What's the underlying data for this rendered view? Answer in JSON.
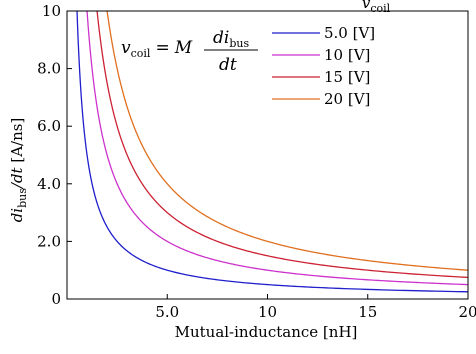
{
  "chart_data": {
    "type": "line",
    "xlabel": "Mutual-inductance [nH]",
    "ylabel": "di_bus/dt [A/ns]",
    "xlim": [
      0,
      20
    ],
    "ylim": [
      0,
      10
    ],
    "x_ticks": [
      {
        "value": 5,
        "label": "5.0"
      },
      {
        "value": 10,
        "label": "10"
      },
      {
        "value": 15,
        "label": "15"
      },
      {
        "value": 20,
        "label": "20"
      }
    ],
    "y_ticks": [
      {
        "value": 0,
        "label": "0"
      },
      {
        "value": 2,
        "label": "2.0"
      },
      {
        "value": 4,
        "label": "4.0"
      },
      {
        "value": 6,
        "label": "6.0"
      },
      {
        "value": 8,
        "label": "8.0"
      },
      {
        "value": 10,
        "label": "10"
      }
    ],
    "grid": false,
    "legend": {
      "title": "v_coil",
      "placement": "top-right",
      "entries": [
        "5.0 [V]",
        "10 [V]",
        "15 [V]",
        "20 [V]"
      ]
    },
    "annotation": {
      "lhs": "v",
      "lhs_sub": "coil",
      "eq": "=",
      "M": "M",
      "num": "di",
      "num_sub": "bus",
      "den": "dt"
    },
    "series": [
      {
        "name": "5.0 [V]",
        "v_coil": 5,
        "relation": "y = v_coil / x",
        "color": "#1f1fcc"
      },
      {
        "name": "10 [V]",
        "v_coil": 10,
        "relation": "y = v_coil / x",
        "color": "#cc33cc"
      },
      {
        "name": "15 [V]",
        "v_coil": 15,
        "relation": "y = v_coil / x",
        "color": "#cc2233"
      },
      {
        "name": "20 [V]",
        "v_coil": 20,
        "relation": "y = v_coil / x",
        "color": "#e07020"
      }
    ]
  }
}
